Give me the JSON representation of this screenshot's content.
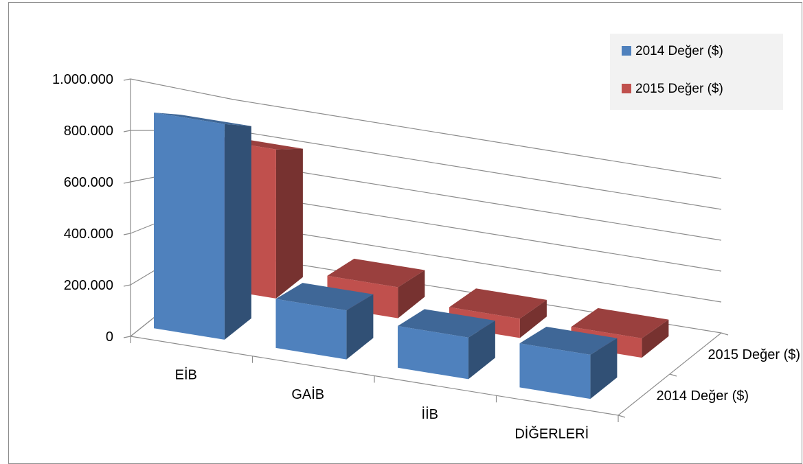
{
  "chart_data": {
    "type": "bar",
    "variant": "3d-column",
    "title": "",
    "xlabel": "",
    "ylabel": "",
    "categories": [
      "EİB",
      "GAİB",
      "İİB",
      "DİĞERLERİ"
    ],
    "series": [
      {
        "name": "2014 Değer ($)",
        "values": [
          880000,
          200000,
          170000,
          180000
        ]
      },
      {
        "name": "2015 Değer ($)",
        "values": [
          770000,
          160000,
          100000,
          100000
        ]
      }
    ],
    "ylim": [
      0,
      1000000
    ],
    "yticks": [
      0,
      200000,
      400000,
      600000,
      800000,
      1000000
    ],
    "ytick_labels": [
      "0",
      "200.000",
      "400.000",
      "600.000",
      "800.000",
      "1.000.000"
    ],
    "depth_labels": [
      "2015 Değer ($)",
      "2014 Değer ($)"
    ],
    "legend_position": "top-right",
    "grid": true,
    "colors": {
      "2014 Değer ($)": "#4f81bd",
      "2015 Değer ($)": "#c0504d",
      "gridline": "#8c8c8c",
      "legend_background": "#f2f2f2"
    }
  }
}
